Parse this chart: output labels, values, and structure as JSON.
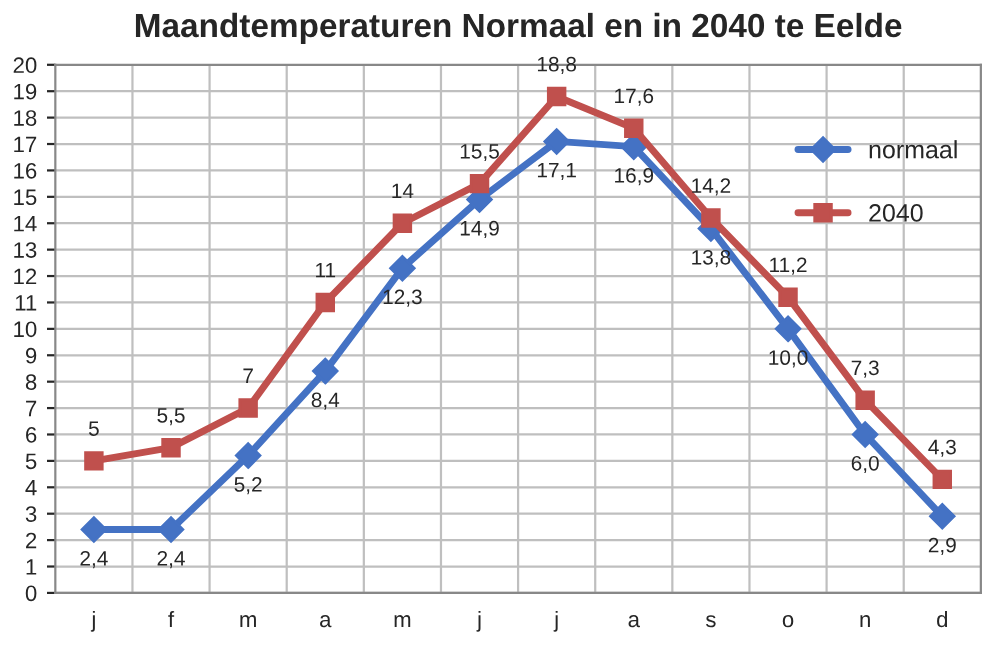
{
  "chart_data": {
    "type": "line",
    "title": "Maandtemperaturen Normaal en in 2040 te Eelde",
    "categories": [
      "j",
      "f",
      "m",
      "a",
      "m",
      "j",
      "j",
      "a",
      "s",
      "o",
      "n",
      "d"
    ],
    "series": [
      {
        "name": "normaal",
        "color": "#4472c4",
        "marker": "diamond",
        "values": [
          2.4,
          2.4,
          5.2,
          8.4,
          12.3,
          14.9,
          17.1,
          16.9,
          13.8,
          10.0,
          6.0,
          2.9
        ],
        "value_labels": [
          "2,4",
          "2,4",
          "5,2",
          "8,4",
          "12,3",
          "14,9",
          "17,1",
          "16,9",
          "13,8",
          "10,0",
          "6,0",
          "2,9"
        ]
      },
      {
        "name": "2040",
        "color": "#c0504d",
        "marker": "square",
        "values": [
          5,
          5.5,
          7,
          11,
          14,
          15.5,
          18.8,
          17.6,
          14.2,
          11.2,
          7.3,
          4.3
        ],
        "value_labels": [
          "5",
          "5,5",
          "7",
          "11",
          "14",
          "15,5",
          "18,8",
          "17,6",
          "14,2",
          "11,2",
          "7,3",
          "4,3"
        ]
      }
    ],
    "ylim": [
      0,
      20
    ],
    "yticks": [
      0,
      1,
      2,
      3,
      4,
      5,
      6,
      7,
      8,
      9,
      10,
      11,
      12,
      13,
      14,
      15,
      16,
      17,
      18,
      19,
      20
    ],
    "grid": true,
    "legend": "top right",
    "line_style": "solid"
  }
}
